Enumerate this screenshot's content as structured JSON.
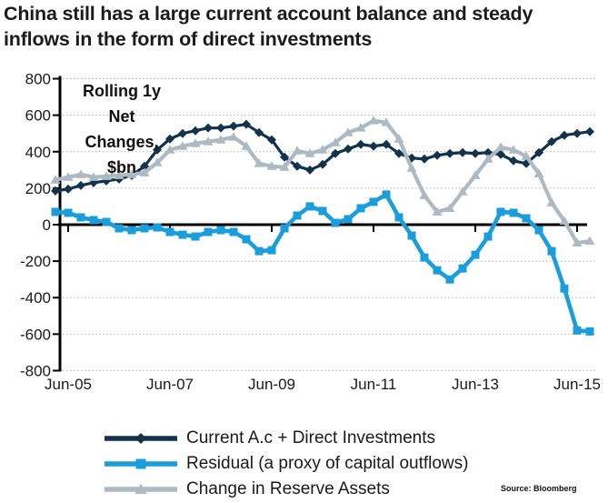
{
  "title": {
    "line1": "China still has a large current account balance and steady",
    "line2": "inflows in the form of direct investments"
  },
  "annotation": {
    "lines": [
      "Rolling 1y",
      "Net",
      "Changes,",
      "$bn"
    ]
  },
  "source": "Source: Bloomberg",
  "colors": {
    "navy": "#13334d",
    "blue": "#1a9edb",
    "gray": "#aebac3",
    "grid": "#b3b3b3",
    "axis": "#000000",
    "text": "#1a1a1a"
  },
  "chart_data": {
    "type": "line",
    "title": "Rolling 1y Net Changes, $bn",
    "xlabel": "",
    "ylabel": "",
    "ylim": [
      -800,
      800
    ],
    "ytick_step": 200,
    "grid": "horizontal-dotted",
    "legend_position": "bottom-left",
    "x": [
      "Mar-05",
      "Jun-05",
      "Sep-05",
      "Dec-05",
      "Mar-06",
      "Jun-06",
      "Sep-06",
      "Dec-06",
      "Mar-07",
      "Jun-07",
      "Sep-07",
      "Dec-07",
      "Mar-08",
      "Jun-08",
      "Sep-08",
      "Dec-08",
      "Mar-09",
      "Jun-09",
      "Sep-09",
      "Dec-09",
      "Mar-10",
      "Jun-10",
      "Sep-10",
      "Dec-10",
      "Mar-11",
      "Jun-11",
      "Sep-11",
      "Dec-11",
      "Mar-12",
      "Jun-12",
      "Sep-12",
      "Dec-12",
      "Mar-13",
      "Jun-13",
      "Sep-13",
      "Dec-13",
      "Mar-14",
      "Jun-14",
      "Sep-14",
      "Dec-14",
      "Mar-15",
      "Jun-15",
      "Sep-15"
    ],
    "xticks": [
      "Jun-05",
      "Jun-07",
      "Jun-09",
      "Jun-11",
      "Jun-13",
      "Jun-15"
    ],
    "series": [
      {
        "name": "Current A.c + Direct Investments",
        "color": "#13334d",
        "marker": "diamond",
        "values": [
          185,
          195,
          215,
          230,
          240,
          250,
          270,
          320,
          410,
          470,
          500,
          515,
          530,
          530,
          540,
          550,
          505,
          465,
          370,
          320,
          300,
          330,
          390,
          415,
          440,
          430,
          440,
          390,
          365,
          360,
          380,
          390,
          395,
          390,
          395,
          385,
          350,
          335,
          395,
          455,
          490,
          500,
          510
        ]
      },
      {
        "name": "Residual (a proxy of capital outflows)",
        "color": "#1a9edb",
        "marker": "square",
        "values": [
          70,
          65,
          40,
          25,
          15,
          -20,
          -30,
          -20,
          -15,
          -40,
          -55,
          -65,
          -40,
          -30,
          -40,
          -80,
          -145,
          -140,
          -20,
          50,
          100,
          75,
          10,
          30,
          90,
          125,
          165,
          40,
          -60,
          -180,
          -250,
          -300,
          -240,
          -165,
          -65,
          70,
          65,
          35,
          -30,
          -145,
          -350,
          -580,
          -585
        ]
      },
      {
        "name": "Change in Reserve Assets",
        "color": "#aebac3",
        "marker": "triangle",
        "values": [
          245,
          260,
          275,
          260,
          265,
          270,
          275,
          285,
          340,
          410,
          430,
          445,
          455,
          465,
          480,
          430,
          335,
          320,
          315,
          405,
          390,
          410,
          450,
          505,
          530,
          570,
          560,
          470,
          310,
          160,
          70,
          90,
          180,
          270,
          360,
          425,
          410,
          375,
          280,
          120,
          20,
          -100,
          -90
        ]
      }
    ]
  }
}
